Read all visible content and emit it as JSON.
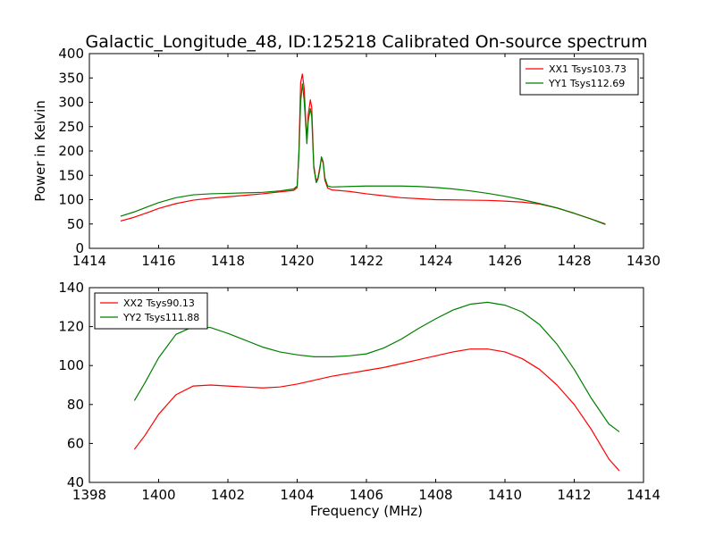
{
  "figure": {
    "title": "Galactic_Longitude_48, ID:125218 Calibrated On-source spectrum"
  },
  "chart_data": [
    {
      "type": "line",
      "title": "Galactic_Longitude_48, ID:125218 Calibrated On-source spectrum",
      "xlabel": "",
      "ylabel": "Power in Kelvin",
      "xlim": [
        1414,
        1430
      ],
      "ylim": [
        0,
        400
      ],
      "xticks": [
        1414,
        1416,
        1418,
        1420,
        1422,
        1424,
        1426,
        1428,
        1430
      ],
      "yticks": [
        0,
        50,
        100,
        150,
        200,
        250,
        300,
        350,
        400
      ],
      "legend_position": "top-right",
      "grid": false,
      "series": [
        {
          "name": "XX1 Tsys103.73",
          "color": "#ff0000",
          "points": [
            [
              1414.9,
              56
            ],
            [
              1415.3,
              64
            ],
            [
              1415.7,
              74
            ],
            [
              1416.0,
              82
            ],
            [
              1416.5,
              92
            ],
            [
              1417.0,
              99
            ],
            [
              1417.5,
              103
            ],
            [
              1418.0,
              106
            ],
            [
              1418.5,
              109
            ],
            [
              1419.0,
              112
            ],
            [
              1419.5,
              116
            ],
            [
              1419.9,
              119
            ],
            [
              1420.0,
              125
            ],
            [
              1420.05,
              200
            ],
            [
              1420.1,
              340
            ],
            [
              1420.15,
              358
            ],
            [
              1420.2,
              330
            ],
            [
              1420.25,
              260
            ],
            [
              1420.28,
              225
            ],
            [
              1420.32,
              275
            ],
            [
              1420.38,
              305
            ],
            [
              1420.42,
              290
            ],
            [
              1420.48,
              170
            ],
            [
              1420.55,
              138
            ],
            [
              1420.6,
              145
            ],
            [
              1420.65,
              165
            ],
            [
              1420.7,
              185
            ],
            [
              1420.75,
              175
            ],
            [
              1420.8,
              140
            ],
            [
              1420.88,
              124
            ],
            [
              1421.0,
              120
            ],
            [
              1421.5,
              117
            ],
            [
              1422.0,
              112
            ],
            [
              1422.5,
              108
            ],
            [
              1423.0,
              104
            ],
            [
              1423.5,
              102
            ],
            [
              1424.0,
              100
            ],
            [
              1424.5,
              99.5
            ],
            [
              1425.0,
              99
            ],
            [
              1425.5,
              98.5
            ],
            [
              1426.0,
              97
            ],
            [
              1426.5,
              95
            ],
            [
              1427.0,
              91
            ],
            [
              1427.5,
              83
            ],
            [
              1428.0,
              72
            ],
            [
              1428.5,
              60
            ],
            [
              1428.9,
              50
            ]
          ]
        },
        {
          "name": "YY1 Tsys112.69",
          "color": "#007f00",
          "points": [
            [
              1414.9,
              66
            ],
            [
              1415.3,
              75
            ],
            [
              1415.7,
              86
            ],
            [
              1416.0,
              94
            ],
            [
              1416.5,
              104
            ],
            [
              1417.0,
              110
            ],
            [
              1417.5,
              112
            ],
            [
              1418.0,
              113
            ],
            [
              1418.5,
              114
            ],
            [
              1419.0,
              115
            ],
            [
              1419.5,
              118
            ],
            [
              1419.9,
              122
            ],
            [
              1420.0,
              128
            ],
            [
              1420.05,
              190
            ],
            [
              1420.1,
              300
            ],
            [
              1420.15,
              338
            ],
            [
              1420.2,
              305
            ],
            [
              1420.25,
              250
            ],
            [
              1420.28,
              215
            ],
            [
              1420.32,
              262
            ],
            [
              1420.38,
              287
            ],
            [
              1420.42,
              270
            ],
            [
              1420.48,
              165
            ],
            [
              1420.55,
              135
            ],
            [
              1420.6,
              142
            ],
            [
              1420.65,
              160
            ],
            [
              1420.7,
              188
            ],
            [
              1420.75,
              178
            ],
            [
              1420.8,
              145
            ],
            [
              1420.88,
              128
            ],
            [
              1421.0,
              126
            ],
            [
              1421.5,
              127
            ],
            [
              1422.0,
              128
            ],
            [
              1422.5,
              128
            ],
            [
              1423.0,
              128
            ],
            [
              1423.5,
              127
            ],
            [
              1424.0,
              125
            ],
            [
              1424.5,
              122
            ],
            [
              1425.0,
              118
            ],
            [
              1425.5,
              113
            ],
            [
              1426.0,
              107
            ],
            [
              1426.5,
              100
            ],
            [
              1427.0,
              92
            ],
            [
              1427.5,
              83
            ],
            [
              1428.0,
              72
            ],
            [
              1428.5,
              60
            ],
            [
              1428.9,
              49
            ]
          ]
        }
      ]
    },
    {
      "type": "line",
      "title": "",
      "xlabel": "Frequency (MHz)",
      "ylabel": "",
      "xlim": [
        1398,
        1414
      ],
      "ylim": [
        40,
        140
      ],
      "xticks": [
        1398,
        1400,
        1402,
        1404,
        1406,
        1408,
        1410,
        1412,
        1414
      ],
      "yticks": [
        40,
        60,
        80,
        100,
        120,
        140
      ],
      "legend_position": "top-left",
      "grid": false,
      "series": [
        {
          "name": "XX2 Tsys90.13",
          "color": "#ff0000",
          "points": [
            [
              1399.3,
              57
            ],
            [
              1399.6,
              64
            ],
            [
              1400.0,
              75
            ],
            [
              1400.5,
              85
            ],
            [
              1401.0,
              89.5
            ],
            [
              1401.5,
              90
            ],
            [
              1402.0,
              89.5
            ],
            [
              1402.5,
              89
            ],
            [
              1403.0,
              88.5
            ],
            [
              1403.5,
              89
            ],
            [
              1404.0,
              90.5
            ],
            [
              1404.5,
              92.5
            ],
            [
              1405.0,
              94.5
            ],
            [
              1405.5,
              96
            ],
            [
              1406.0,
              97.5
            ],
            [
              1406.5,
              99
            ],
            [
              1407.0,
              101
            ],
            [
              1407.5,
              103
            ],
            [
              1408.0,
              105
            ],
            [
              1408.5,
              107
            ],
            [
              1409.0,
              108.5
            ],
            [
              1409.5,
              108.5
            ],
            [
              1410.0,
              107
            ],
            [
              1410.5,
              103.5
            ],
            [
              1411.0,
              98
            ],
            [
              1411.5,
              90
            ],
            [
              1412.0,
              80
            ],
            [
              1412.5,
              67
            ],
            [
              1413.0,
              52
            ],
            [
              1413.3,
              46
            ]
          ]
        },
        {
          "name": "YY2 Tsys111.88",
          "color": "#007f00",
          "points": [
            [
              1399.3,
              82
            ],
            [
              1399.6,
              91
            ],
            [
              1400.0,
              104
            ],
            [
              1400.5,
              116
            ],
            [
              1401.0,
              120
            ],
            [
              1401.5,
              119.5
            ],
            [
              1402.0,
              116.5
            ],
            [
              1402.5,
              113
            ],
            [
              1403.0,
              109.5
            ],
            [
              1403.5,
              107
            ],
            [
              1404.0,
              105.5
            ],
            [
              1404.5,
              104.5
            ],
            [
              1405.0,
              104.5
            ],
            [
              1405.5,
              105
            ],
            [
              1406.0,
              106
            ],
            [
              1406.5,
              109
            ],
            [
              1407.0,
              113.5
            ],
            [
              1407.5,
              119
            ],
            [
              1408.0,
              124
            ],
            [
              1408.5,
              128.5
            ],
            [
              1409.0,
              131.5
            ],
            [
              1409.5,
              132.5
            ],
            [
              1410.0,
              131
            ],
            [
              1410.5,
              127.5
            ],
            [
              1411.0,
              121
            ],
            [
              1411.5,
              111
            ],
            [
              1412.0,
              98
            ],
            [
              1412.5,
              83
            ],
            [
              1413.0,
              70
            ],
            [
              1413.3,
              66
            ]
          ]
        }
      ]
    }
  ]
}
